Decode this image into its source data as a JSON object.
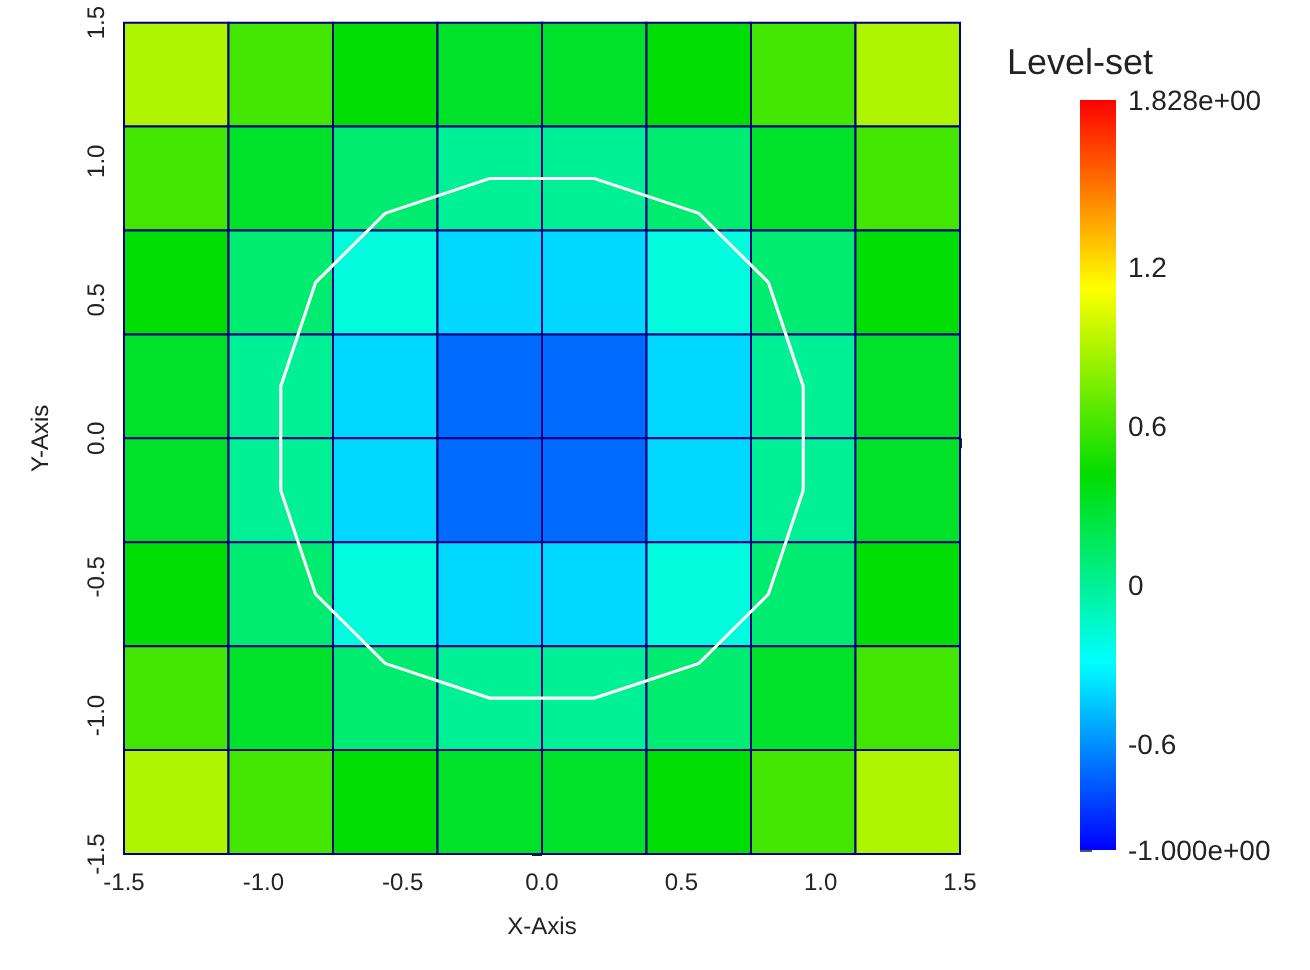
{
  "chart_data": {
    "type": "heatmap",
    "xlabel": "X-Axis",
    "ylabel": "Y-Axis",
    "clabel": "Level-set",
    "x": [
      -1.3125,
      -0.9375,
      -0.5625,
      -0.1875,
      0.1875,
      0.5625,
      0.9375,
      1.3125
    ],
    "y": [
      1.3125,
      0.9375,
      0.5625,
      0.1875,
      -0.1875,
      -0.5625,
      -0.9375,
      -1.3125
    ],
    "cells": [
      [
        0.9,
        0.6,
        0.4,
        0.3,
        0.3,
        0.4,
        0.6,
        0.9
      ],
      [
        0.6,
        0.3,
        0.1,
        0.0,
        0.0,
        0.1,
        0.3,
        0.6
      ],
      [
        0.4,
        0.1,
        -0.2,
        -0.4,
        -0.4,
        -0.2,
        0.1,
        0.4
      ],
      [
        0.3,
        0.0,
        -0.4,
        -0.7,
        -0.7,
        -0.4,
        0.0,
        0.3
      ],
      [
        0.3,
        0.0,
        -0.4,
        -0.7,
        -0.7,
        -0.4,
        0.0,
        0.3
      ],
      [
        0.4,
        0.1,
        -0.2,
        -0.4,
        -0.4,
        -0.2,
        0.1,
        0.4
      ],
      [
        0.6,
        0.3,
        0.1,
        0.0,
        0.0,
        0.1,
        0.3,
        0.6
      ],
      [
        0.9,
        0.6,
        0.4,
        0.3,
        0.3,
        0.4,
        0.6,
        0.9
      ]
    ],
    "xlim": [
      -1.5,
      1.5
    ],
    "ylim": [
      -1.5,
      1.5
    ],
    "xticks": [
      {
        "value": -1.5,
        "label": "-1.5"
      },
      {
        "value": -1,
        "label": "-1.0"
      },
      {
        "value": -0.5,
        "label": "-0.5"
      },
      {
        "value": 0,
        "label": "0.0"
      },
      {
        "value": 0.5,
        "label": "0.5"
      },
      {
        "value": 1,
        "label": "1.0"
      },
      {
        "value": 1.5,
        "label": "1.5"
      }
    ],
    "yticks": [
      {
        "value": -1.5,
        "label": "-1.5"
      },
      {
        "value": -1,
        "label": "-1.0"
      },
      {
        "value": -0.5,
        "label": "-0.5"
      },
      {
        "value": 0,
        "label": "0.0"
      },
      {
        "value": 0.5,
        "label": "0.5"
      },
      {
        "value": 1,
        "label": "1.0"
      },
      {
        "value": 1.5,
        "label": "1.5"
      }
    ],
    "clim": [
      -1,
      1.828
    ],
    "cticks": [
      {
        "value": -1,
        "label": "-1.000e+00"
      },
      {
        "value": -0.6,
        "label": "-0.6"
      },
      0,
      {
        "value": 0.6,
        "label": "0.6"
      },
      {
        "value": 1.2,
        "label": "1.2"
      },
      {
        "value": 1.828,
        "label": "1.828e+00"
      }
    ]
  }
}
